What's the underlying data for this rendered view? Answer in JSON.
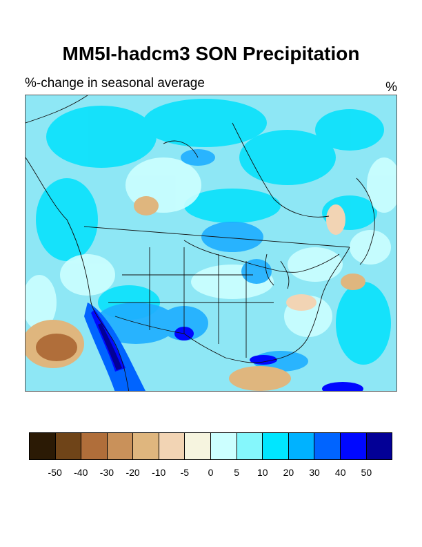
{
  "figure": {
    "title": "MM5I-hadcm3 SON Precipitation",
    "subtitle": "%-change in seasonal average",
    "units": "%"
  },
  "colorbar": {
    "colors": [
      "#2b1a05",
      "#6f4418",
      "#b06e3a",
      "#c9915a",
      "#dfb67e",
      "#f2d4b4",
      "#f6f4df",
      "#ccffff",
      "#85f7fc",
      "#00e6ff",
      "#00b2ff",
      "#0064ff",
      "#0008ff",
      "#030096"
    ],
    "tick_labels": [
      "-50",
      "-40",
      "-30",
      "-20",
      "-10",
      "-5",
      "0",
      "5",
      "10",
      "20",
      "30",
      "40",
      "50"
    ]
  }
}
